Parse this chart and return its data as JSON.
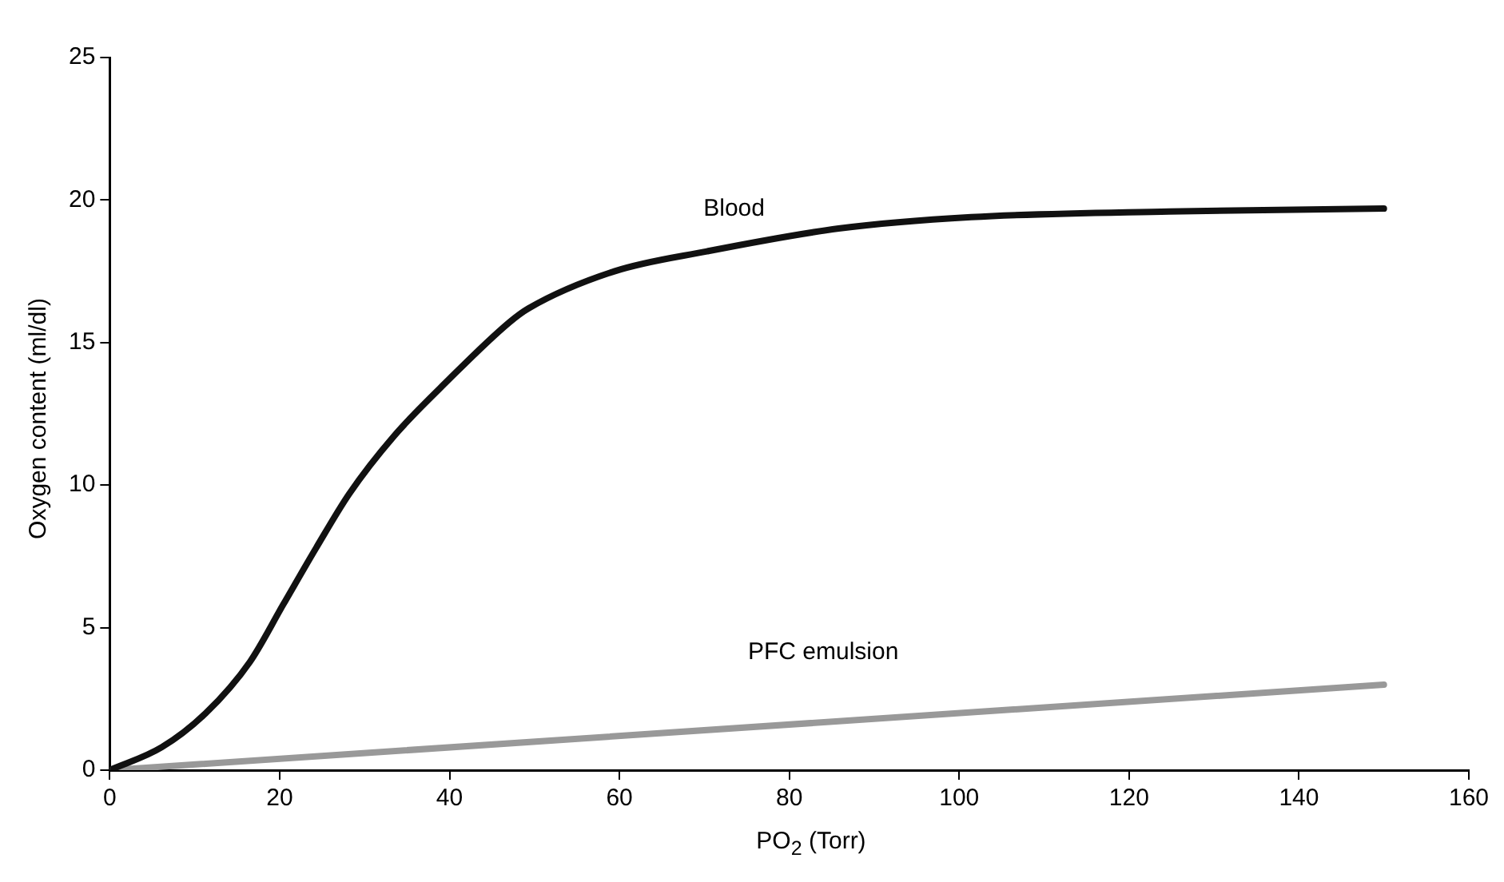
{
  "chart_data": {
    "type": "line",
    "xlabel": "PO$_{2}$ (Torr)",
    "ylabel": "Oxygen content (ml/dl)",
    "xlim": [
      0,
      160
    ],
    "xticks": [
      0,
      20,
      40,
      60,
      80,
      100,
      120,
      140,
      160
    ],
    "ylim": [
      0,
      25
    ],
    "yticks": [
      0,
      5,
      10,
      15,
      20,
      25
    ],
    "grid": false,
    "legend": false,
    "marker": "none",
    "line_style": "solid",
    "series": [
      {
        "name": "Blood",
        "color": "#111111",
        "x": [
          0,
          6.1,
          11.3,
          16.5,
          20.4,
          24.3,
          28.2,
          33.4,
          39.9,
          47,
          49.3,
          59.4,
          70.3,
          85.8,
          101.4,
          124.7,
          150
        ],
        "values": [
          0,
          0.8,
          2,
          3.8,
          5.8,
          7.8,
          9.7,
          11.7,
          13.7,
          15.7,
          16.2,
          17.5,
          18.2,
          19,
          19.4,
          19.6,
          19.7
        ]
      },
      {
        "name": "PFC emulsion",
        "color": "#999999",
        "x": [
          0,
          150
        ],
        "values": [
          0,
          3
        ]
      }
    ]
  }
}
